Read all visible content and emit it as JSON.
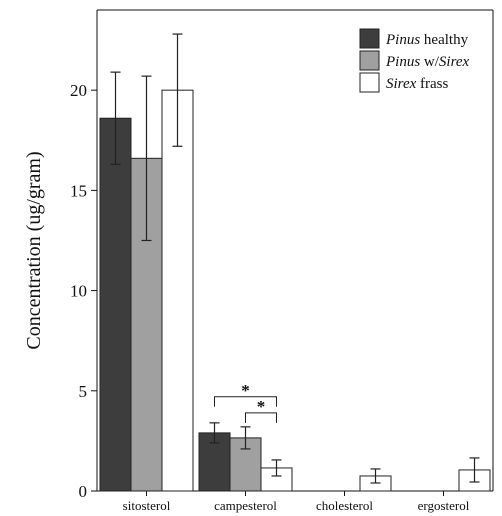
{
  "chart_data": {
    "type": "bar",
    "title": "",
    "xlabel": "",
    "ylabel": "Concentration (ug/gram)",
    "ylim": [
      0,
      24
    ],
    "yticks": [
      0,
      5,
      10,
      15,
      20
    ],
    "yticks_labels": [
      "0",
      "5",
      "10",
      "15",
      "20"
    ],
    "grid": false,
    "legend_position": "top-right",
    "categories": [
      "sitosterol",
      "campesterol",
      "cholesterol",
      "ergosterol"
    ],
    "series": [
      {
        "name_italic": "Pinus",
        "name_rest": " healthy",
        "color": "#3d3d3d",
        "values": [
          18.6,
          2.9,
          null,
          null
        ],
        "errors": [
          2.3,
          0.5,
          null,
          null
        ]
      },
      {
        "name_italic": "Pinus",
        "name_rest": " w/",
        "name_italic2": "Sirex",
        "color": "#a0a0a0",
        "values": [
          16.6,
          2.65,
          null,
          null
        ],
        "errors": [
          4.1,
          0.55,
          null,
          null
        ]
      },
      {
        "name_italic": "Sirex",
        "name_rest": " frass",
        "color": "#ffffff",
        "values": [
          20.0,
          1.15,
          0.75,
          1.05
        ],
        "errors": [
          2.8,
          0.4,
          0.35,
          0.6
        ]
      }
    ],
    "annotations": [
      {
        "text": "*",
        "category": "campesterol",
        "from_series": 0,
        "to_series": 2,
        "level": 4.7
      },
      {
        "text": "*",
        "category": "campesterol",
        "from_series": 1,
        "to_series": 2,
        "level": 3.9
      }
    ]
  }
}
